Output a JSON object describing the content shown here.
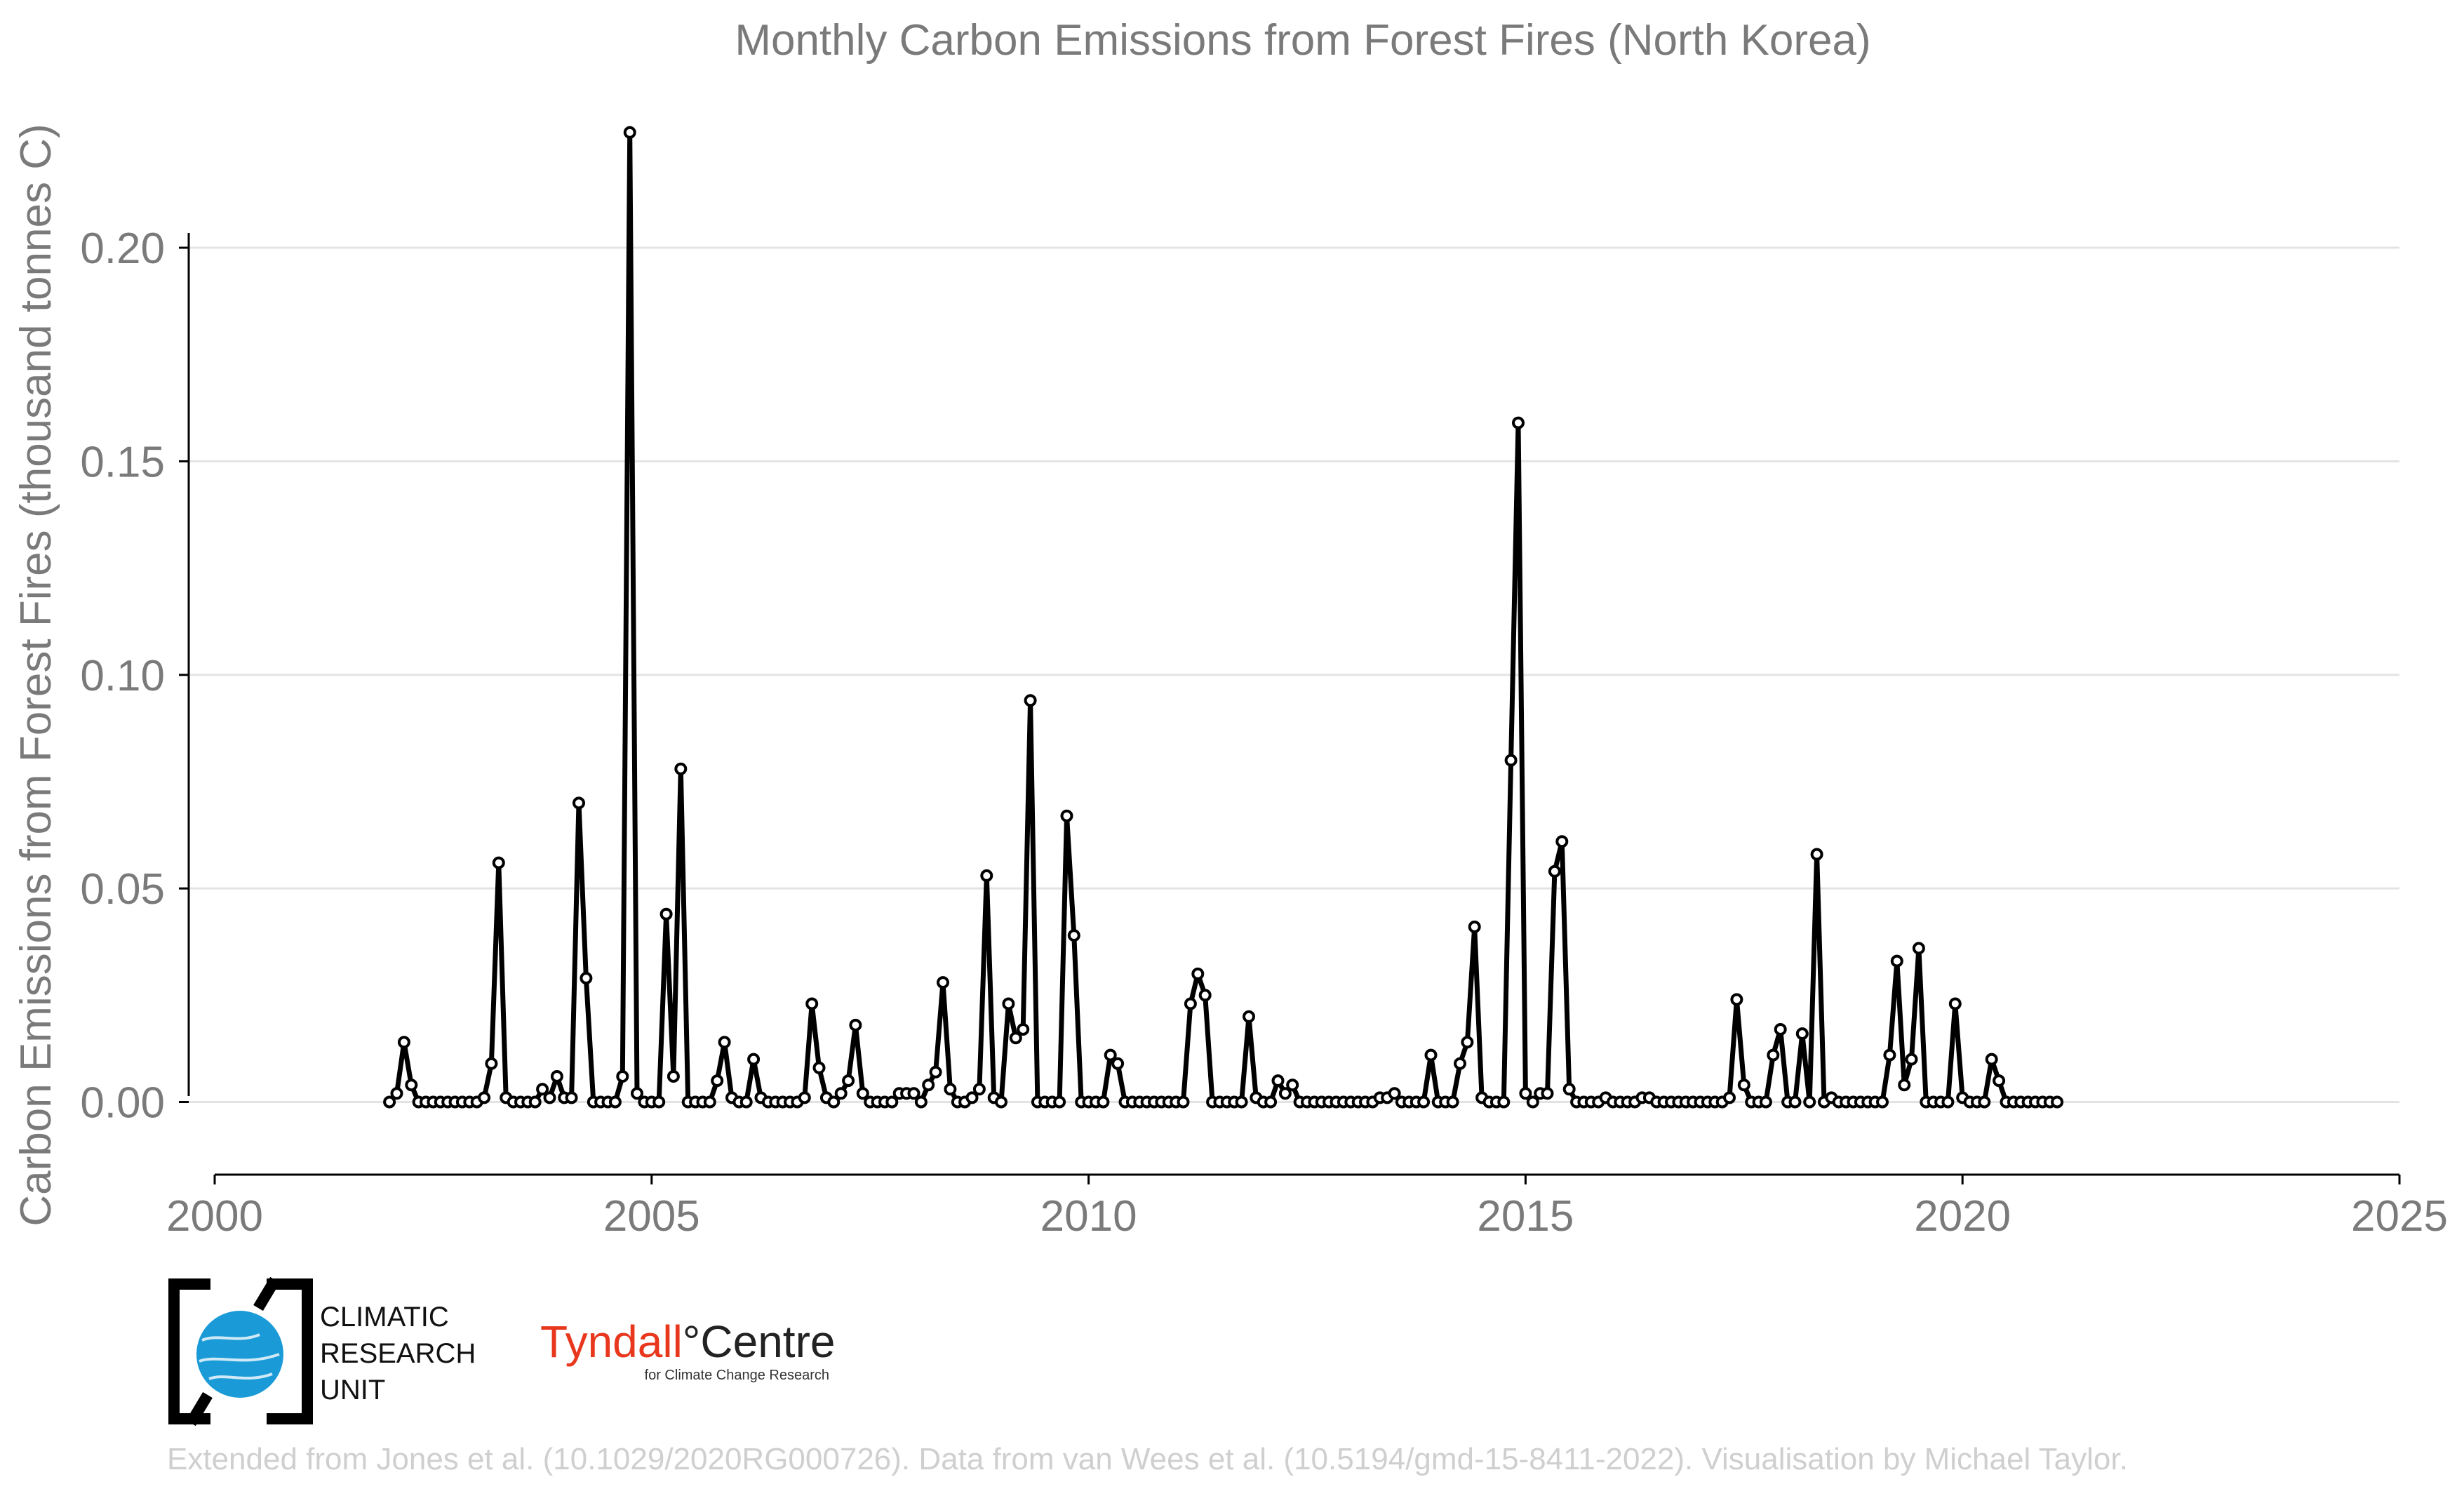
{
  "chart_data": {
    "type": "line",
    "title": "Monthly Carbon Emissions from Forest Fires (North Korea)",
    "ylabel": "Carbon Emissions from Forest Fires (thousand tonnes C)",
    "xlabel": "",
    "xlim": [
      2000,
      2025
    ],
    "ylim": [
      -0.017,
      0.235
    ],
    "x_ticks": [
      "2000",
      "2005",
      "2010",
      "2015",
      "2020",
      "2025"
    ],
    "y_ticks": [
      "0.00",
      "0.05",
      "0.10",
      "0.15",
      "0.20"
    ],
    "grid": "horizontal",
    "line_color": "#000000",
    "marker_fill": "#ffffff",
    "x_start": "2002-01",
    "series": [
      {
        "values": [
          0.0,
          0.002,
          0.014,
          0.004,
          0.0,
          0.0,
          0.0,
          0.0,
          0.0,
          0.0,
          0.0,
          0.0,
          0.0,
          0.001,
          0.009,
          0.056,
          0.001,
          0.0,
          0.0,
          0.0,
          0.0,
          0.003,
          0.001,
          0.006,
          0.001,
          0.001,
          0.07,
          0.029,
          0.0,
          0.0,
          0.0,
          0.0,
          0.006,
          0.227,
          0.002,
          0.0,
          0.0,
          0.0,
          0.044,
          0.006,
          0.078,
          0.0,
          0.0,
          0.0,
          0.0,
          0.005,
          0.014,
          0.001,
          0.0,
          0.0,
          0.01,
          0.001,
          0.0,
          0.0,
          0.0,
          0.0,
          0.0,
          0.001,
          0.023,
          0.008,
          0.001,
          0.0,
          0.002,
          0.005,
          0.018,
          0.002,
          0.0,
          0.0,
          0.0,
          0.0,
          0.002,
          0.002,
          0.002,
          0.0,
          0.004,
          0.007,
          0.028,
          0.003,
          0.0,
          0.0,
          0.001,
          0.003,
          0.053,
          0.001,
          0.0,
          0.023,
          0.015,
          0.017,
          0.094,
          0.0,
          0.0,
          0.0,
          0.0,
          0.067,
          0.039,
          0.0,
          0.0,
          0.0,
          0.0,
          0.011,
          0.009,
          0.0,
          0.0,
          0.0,
          0.0,
          0.0,
          0.0,
          0.0,
          0.0,
          0.0,
          0.023,
          0.03,
          0.025,
          0.0,
          0.0,
          0.0,
          0.0,
          0.0,
          0.02,
          0.001,
          0.0,
          0.0,
          0.005,
          0.002,
          0.004,
          0.0,
          0.0,
          0.0,
          0.0,
          0.0,
          0.0,
          0.0,
          0.0,
          0.0,
          0.0,
          0.0,
          0.001,
          0.001,
          0.002,
          0.0,
          0.0,
          0.0,
          0.0,
          0.011,
          0.0,
          0.0,
          0.0,
          0.009,
          0.014,
          0.041,
          0.001,
          0.0,
          0.0,
          0.0,
          0.08,
          0.159,
          0.002,
          0.0,
          0.002,
          0.002,
          0.054,
          0.061,
          0.003,
          0.0,
          0.0,
          0.0,
          0.0,
          0.001,
          0.0,
          0.0,
          0.0,
          0.0,
          0.001,
          0.001,
          0.0,
          0.0,
          0.0,
          0.0,
          0.0,
          0.0,
          0.0,
          0.0,
          0.0,
          0.0,
          0.001,
          0.024,
          0.004,
          0.0,
          0.0,
          0.0,
          0.011,
          0.017,
          0.0,
          0.0,
          0.016,
          0.0,
          0.058,
          0.0,
          0.001,
          0.0,
          0.0,
          0.0,
          0.0,
          0.0,
          0.0,
          0.0,
          0.011,
          0.033,
          0.004,
          0.01,
          0.036,
          0.0,
          0.0,
          0.0,
          0.0,
          0.023,
          0.001,
          0.0,
          0.0,
          0.0,
          0.01,
          0.005,
          0.0,
          0.0,
          0.0,
          0.0,
          0.0,
          0.0,
          0.0,
          0.0
        ]
      }
    ]
  },
  "logos": {
    "cru": {
      "line1": "CLIMATIC",
      "line2": "RESEARCH",
      "line3": "UNIT"
    },
    "tyndall": {
      "name_a": "Tyndall",
      "degree": "°",
      "name_b": "Centre",
      "subtitle": "for Climate Change Research"
    }
  },
  "credit": "Extended from Jones et al. (10.1029/2020RG000726). Data from van Wees et al. (10.5194/gmd-15-8411-2022). Visualisation by Michael Taylor.",
  "colors": {
    "accent_blue": "#1a9bd7",
    "tyndall_red": "#e8371c",
    "text_gray": "#7a7a7a",
    "credit_gray": "#cfcfcf"
  }
}
